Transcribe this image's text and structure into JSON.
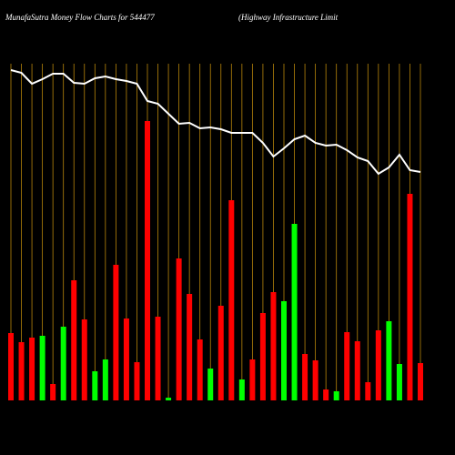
{
  "chart_data": {
    "type": "bar",
    "title": "MunafaSutra  Money Flow  Charts for 544477",
    "subtitle": "(Highway Infrastructure   Limit",
    "categories": [
      null,
      null,
      null,
      null,
      null,
      null,
      null,
      null,
      null,
      null,
      null,
      null,
      null,
      null,
      null,
      null,
      null,
      null,
      null,
      null,
      null,
      null,
      null,
      null,
      null,
      null,
      null,
      null,
      null,
      null,
      null,
      null,
      null,
      null,
      null,
      null,
      null,
      null,
      null,
      null
    ],
    "series": [
      {
        "values": [
          74,
          64,
          69,
          71,
          18,
          81,
          132,
          89,
          32,
          45,
          149,
          90,
          42,
          307,
          92,
          3,
          156,
          117,
          67,
          35,
          104,
          220,
          23,
          45,
          96,
          119,
          109,
          194,
          51,
          44,
          12,
          10,
          75,
          65,
          20,
          77,
          87,
          40,
          227,
          41
        ],
        "colors": [
          "#ff0000",
          "#ff0000",
          "#ff0000",
          "#00ff00",
          "#ff0000",
          "#00ff00",
          "#ff0000",
          "#ff0000",
          "#00ff00",
          "#00ff00",
          "#ff0000",
          "#ff0000",
          "#ff0000",
          "#ff0000",
          "#ff0000",
          "#00ff00",
          "#ff0000",
          "#ff0000",
          "#ff0000",
          "#00ff00",
          "#ff0000",
          "#ff0000",
          "#00ff00",
          "#ff0000",
          "#ff0000",
          "#ff0000",
          "#00ff00",
          "#00ff00",
          "#ff0000",
          "#ff0000",
          "#ff0000",
          "#00ff00",
          "#ff0000",
          "#ff0000",
          "#ff0000",
          "#ff0000",
          "#00ff00",
          "#00ff00",
          "#ff0000",
          "#ff0000"
        ]
      },
      {
        "type": "line",
        "color": "#ffffff",
        "values": [
          363,
          360,
          348,
          353,
          359,
          359,
          349,
          348,
          354,
          356,
          353,
          351,
          348,
          329,
          326,
          315,
          304,
          305,
          299,
          300,
          298,
          294,
          294,
          294,
          283,
          268,
          277,
          287,
          291,
          283,
          280,
          281,
          275,
          267,
          263,
          249,
          256,
          270,
          253,
          251
        ]
      }
    ],
    "ylim": [
      0,
      440
    ],
    "grid_color": "#b8860b"
  }
}
